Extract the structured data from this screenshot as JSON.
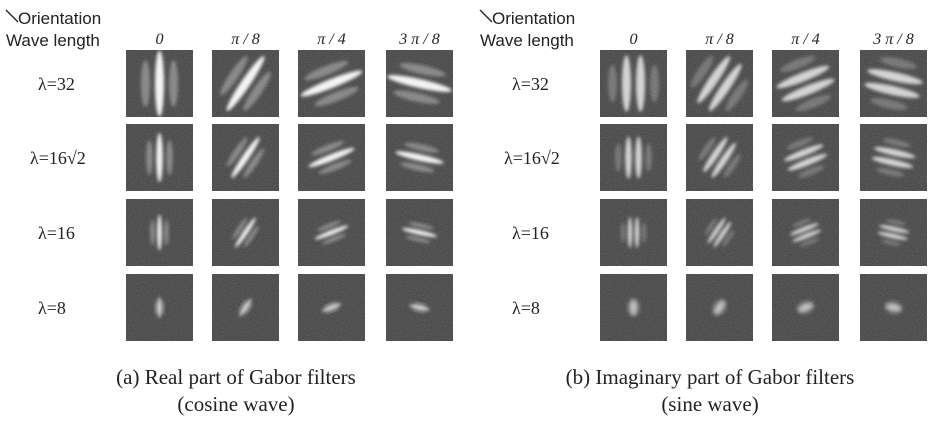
{
  "panels": [
    {
      "header": {
        "orientation": "Orientation",
        "wave_length": "Wave length"
      },
      "columns": [
        "0",
        "π / 8",
        "π / 4",
        "3 π / 8"
      ],
      "rows": [
        "λ=32",
        "λ=16√2",
        "λ=16",
        "λ=8"
      ],
      "caption": [
        "(a) Real part of Gabor filters",
        "(cosine wave)"
      ]
    },
    {
      "header": {
        "orientation": "Orientation",
        "wave_length": "Wave length"
      },
      "columns": [
        "0",
        "π / 8",
        "π / 4",
        "3 π / 8"
      ],
      "rows": [
        "λ=32",
        "λ=16√2",
        "λ=16",
        "λ=8"
      ],
      "caption": [
        "(b) Imaginary part of Gabor filters",
        "(sine wave)"
      ]
    }
  ]
}
